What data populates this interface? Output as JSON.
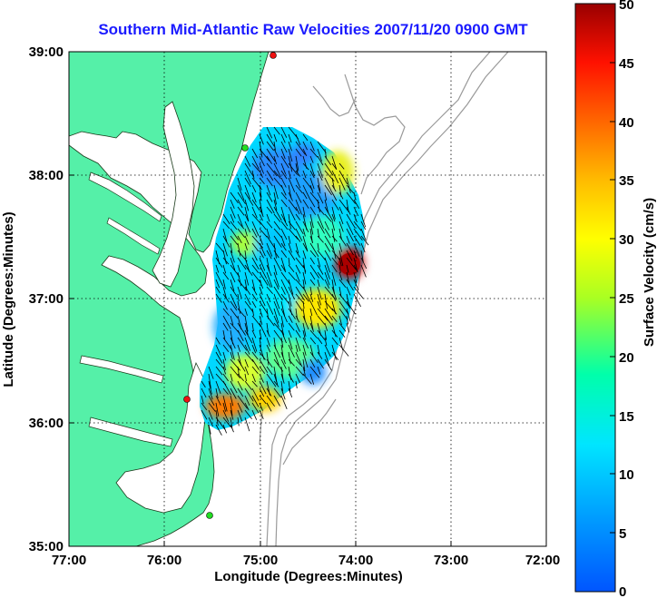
{
  "title": "Southern Mid-Atlantic Raw Velocities 2007/11/20 0900 GMT",
  "xlabel": "Longitude (Degrees:Minutes)",
  "ylabel": "Latitude (Degrees:Minutes)",
  "colorbar_label": "Surface Velocity (cm/s)",
  "x_ticks": [
    "77:00",
    "76:00",
    "75:00",
    "74:00",
    "73:00",
    "72:00"
  ],
  "y_ticks": [
    "39:00",
    "38:00",
    "37:00",
    "36:00",
    "35:00"
  ],
  "colorbar_ticks": [
    "50",
    "45",
    "40",
    "35",
    "30",
    "25",
    "20",
    "15",
    "10",
    "5",
    "0"
  ],
  "colors": {
    "land": "#55f0a8",
    "water": "#ffffff",
    "site_green": "#22dd22",
    "site_red": "#ee1111",
    "bathymetry": "#9a9a9a",
    "title": "#1a1aff"
  },
  "map": {
    "lon_range": [
      "77:00",
      "72:00"
    ],
    "lat_range": [
      "35:00",
      "39:00"
    ],
    "grid": "dotted",
    "colorbar_range_cm_s": [
      0,
      50
    ],
    "colormap": "jet"
  }
}
